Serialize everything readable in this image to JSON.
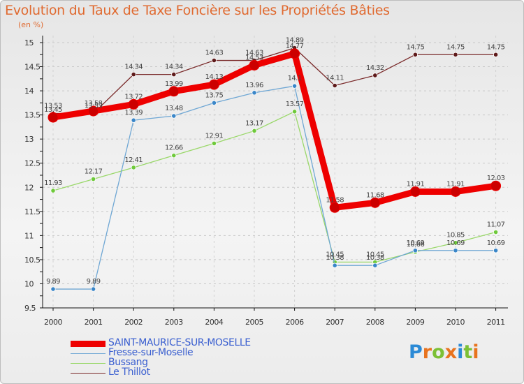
{
  "title": "Evolution du Taux de Taxe Foncière sur les Propriétés Bâties",
  "unit": "(en %)",
  "brand": "Proxiti",
  "chart_data": {
    "type": "line",
    "title": "Evolution du Taux de Taxe Foncière sur les Propriétés Bâties",
    "ylabel": "(en %)",
    "xlabel": "",
    "ylim": [
      9.5,
      15
    ],
    "yticks": [
      "9.5",
      "10",
      "10.5",
      "11",
      "11.5",
      "12",
      "12.5",
      "13",
      "13.5",
      "14",
      "14.5",
      "15"
    ],
    "categories": [
      "2000",
      "2001",
      "2002",
      "2003",
      "2004",
      "2005",
      "2006",
      "2007",
      "2008",
      "2009",
      "2010",
      "2011"
    ],
    "series": [
      {
        "name": "SAINT-MAURICE-SUR-MOSELLE",
        "color": "#ee0000",
        "values": [
          13.45,
          13.58,
          13.72,
          13.99,
          14.13,
          14.53,
          14.77,
          11.58,
          11.68,
          11.91,
          11.91,
          12.03
        ]
      },
      {
        "name": "Fresse-sur-Moselle",
        "color": "#6fa7d4",
        "values": [
          9.89,
          9.89,
          13.39,
          13.48,
          13.75,
          13.96,
          14.1,
          10.38,
          10.38,
          10.69,
          10.69,
          10.69
        ]
      },
      {
        "name": "Bussang",
        "color": "#9ad86a",
        "values": [
          11.93,
          12.17,
          12.41,
          12.66,
          12.91,
          13.17,
          13.57,
          10.45,
          10.45,
          10.66,
          10.85,
          11.07
        ]
      },
      {
        "name": "Le Thillot",
        "color": "#7a2a2a",
        "values": [
          13.53,
          13.53,
          14.34,
          14.34,
          14.63,
          14.63,
          14.89,
          14.11,
          14.32,
          14.75,
          14.75,
          14.75
        ]
      }
    ],
    "point_labels": [
      [
        "13.45",
        "13.58",
        "13.72",
        "13.99",
        "14.13",
        "14.53",
        "14.77",
        "11.58",
        "11.68",
        "11.91",
        "11.91",
        "12.03"
      ],
      [
        "9.89",
        "9.89",
        "13.39",
        "13.48",
        "13.75",
        "13.96",
        "14.1",
        "10.38",
        "10.38",
        "10.69",
        "10.69",
        "10.69"
      ],
      [
        "11.93",
        "12.17",
        "12.41",
        "12.66",
        "12.91",
        "13.17",
        "13.57",
        "10.45",
        "10.45",
        "10.66",
        "10.85",
        "11.07"
      ],
      [
        "13.53",
        "13.53",
        "14.34",
        "14.34",
        "14.63",
        "14.63",
        "14.89",
        "14.11",
        "14.32",
        "14.75",
        "14.75",
        "14.75"
      ]
    ]
  }
}
